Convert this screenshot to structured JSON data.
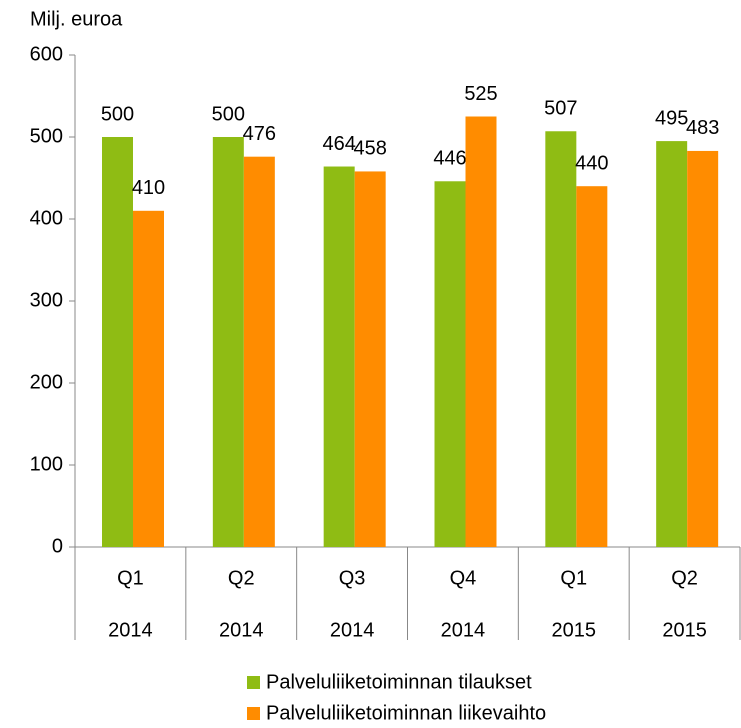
{
  "chart_data": {
    "type": "bar",
    "y_axis_label": "Milj. euroa",
    "categories": [
      "Q1",
      "Q2",
      "Q3",
      "Q4",
      "Q1",
      "Q2"
    ],
    "years": [
      "2014",
      "2014",
      "2014",
      "2014",
      "2015",
      "2015"
    ],
    "series": [
      {
        "name": "Palveluliiketoiminnan tilaukset",
        "color": "#8fbc14",
        "values": [
          500,
          500,
          464,
          446,
          507,
          495
        ]
      },
      {
        "name": "Palveluliiketoiminnan liikevaihto",
        "color": "#ff8c00",
        "values": [
          410,
          476,
          458,
          525,
          440,
          483
        ]
      }
    ],
    "ylim": [
      0,
      600
    ],
    "yticks": [
      0,
      100,
      200,
      300,
      400,
      500,
      600
    ],
    "legend": "bottom"
  }
}
